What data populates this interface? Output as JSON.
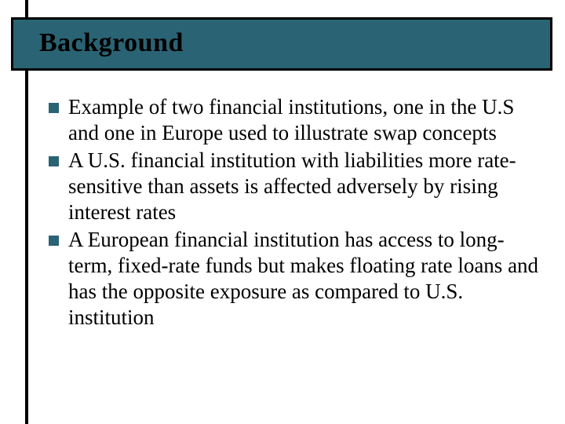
{
  "slide": {
    "title": "Background",
    "title_color": "#000000",
    "title_fontsize": 34,
    "band_fill": "#2a6374",
    "band_border": "#000000",
    "vrule_color": "#000000",
    "background_color": "#ffffff",
    "bullet_marker_color": "#2a6374",
    "bullet_marker_size": 13,
    "body_fontsize": 27,
    "body_color": "#000000",
    "bullets": [
      "Example of two financial institutions, one in the U.S and one in Europe used to illustrate swap concepts",
      "A U.S. financial institution with liabilities more rate-sensitive than assets is affected adversely by rising interest rates",
      "A European financial institution has access to long-term, fixed-rate funds but makes floating rate loans and has the opposite exposure as compared to U.S. institution"
    ]
  }
}
